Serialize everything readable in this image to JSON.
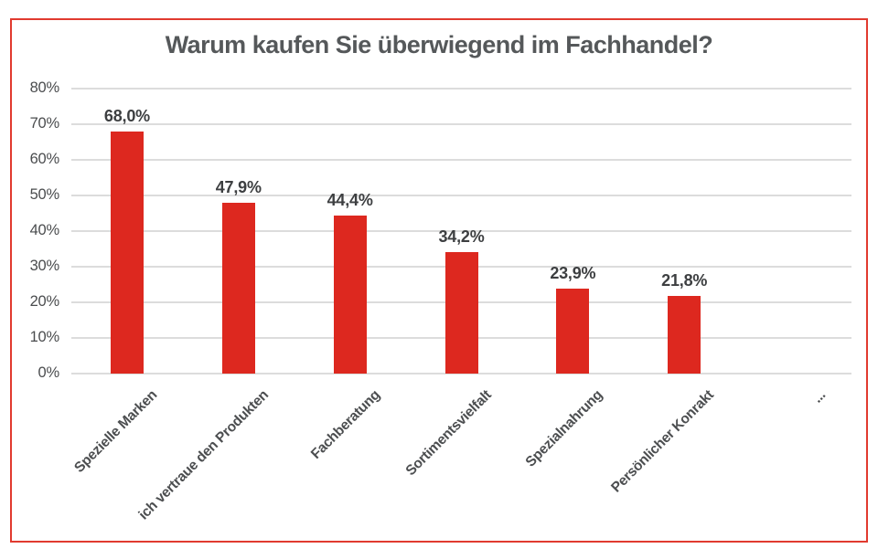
{
  "chart": {
    "title": "Warum kaufen Sie überwiegend im Fachhandel?",
    "border_color": "#e13a2f",
    "title_color": "#55585a"
  },
  "chart_data": {
    "type": "bar",
    "title": "Warum kaufen Sie überwiegend im Fachhandel?",
    "categories": [
      "Spezielle Marken",
      "ich vertraue den Produkten",
      "Fachberatung",
      "Sortimentsvielfalt",
      "Spezialnahrung",
      "Persönlicher Konrakt",
      "..."
    ],
    "values": [
      68.0,
      47.9,
      44.4,
      34.2,
      23.9,
      21.8,
      null
    ],
    "value_labels": [
      "68,0%",
      "47,9%",
      "44,4%",
      "34,2%",
      "23,9%",
      "21,8%",
      ""
    ],
    "xlabel": "",
    "ylabel": "",
    "ylim": [
      0,
      80
    ],
    "ytick_step": 10,
    "ytick_labels": [
      "0%",
      "10%",
      "20%",
      "30%",
      "40%",
      "50%",
      "60%",
      "70%",
      "80%"
    ],
    "grid": true,
    "legend": "none",
    "bar_color": "#dd281f",
    "gridline_color": "#dcdcdc",
    "tick_color": "#4a4c4e",
    "value_label_color": "#3d3f41",
    "category_label_color": "#4c4e50"
  }
}
